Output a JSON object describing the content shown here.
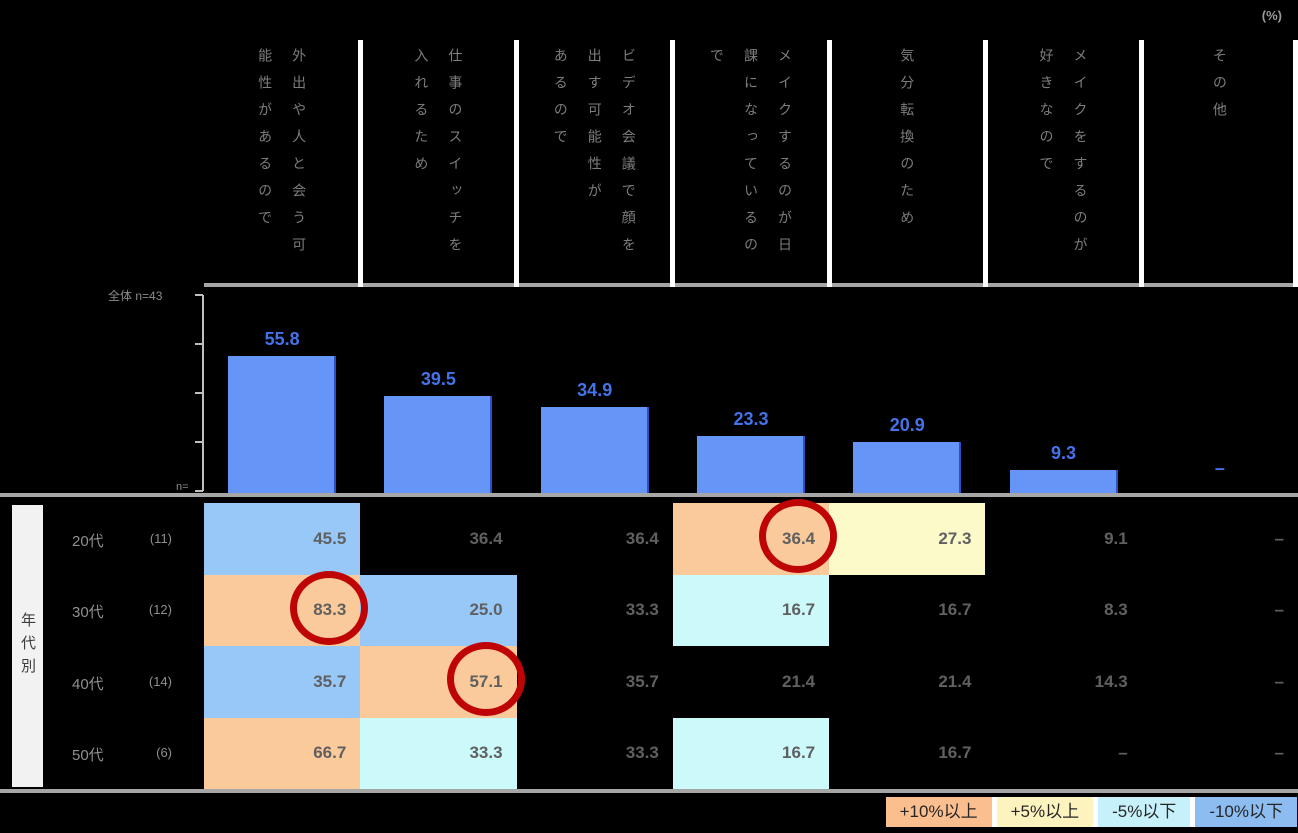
{
  "unit_label": "(%)",
  "chart": {
    "overall_label": "全体 n=43",
    "n_axis_label": "n=",
    "bar_color": "#6495F7",
    "bar_edge_color": "#2B50C8",
    "value_label_color": "#4472E8",
    "axis_max": 80,
    "no_data_mark": "–"
  },
  "columns": [
    {
      "header": "外出や人と会う可\n能性があるので",
      "overall": "55.8"
    },
    {
      "header": "仕事のスイッチを\n入れるため",
      "overall": "39.5"
    },
    {
      "header": "ビデオ会議で顔を\n出す可能性が\nあるので",
      "overall": "34.9"
    },
    {
      "header": "メイクするのが日\n課になっているの\nで",
      "overall": "23.3"
    },
    {
      "header": "気分転換のため",
      "overall": "20.9"
    },
    {
      "header": "メイクをするのが\n好きなので",
      "overall": "9.3"
    },
    {
      "header": "その他",
      "overall": "-"
    }
  ],
  "table": {
    "group_label": "年代別",
    "fill_colors": {
      "plus10": "#FACA9A",
      "plus5": "#FDFAC9",
      "minus5": "#CCFAFB",
      "minus10": "#97C8F8",
      "none": "transparent"
    },
    "rows": [
      {
        "label": "20代",
        "n": "(11)",
        "values": [
          "45.5",
          "36.4",
          "36.4",
          "36.4",
          "27.3",
          "9.1",
          "-"
        ],
        "fills": [
          "minus10",
          "none",
          "none",
          "plus10",
          "plus5",
          "none",
          "none"
        ]
      },
      {
        "label": "30代",
        "n": "(12)",
        "values": [
          "83.3",
          "25.0",
          "33.3",
          "16.7",
          "16.7",
          "8.3",
          "-"
        ],
        "fills": [
          "plus10",
          "minus10",
          "none",
          "minus5",
          "none",
          "none",
          "none"
        ]
      },
      {
        "label": "40代",
        "n": "(14)",
        "values": [
          "35.7",
          "57.1",
          "35.7",
          "21.4",
          "21.4",
          "14.3",
          "-"
        ],
        "fills": [
          "minus10",
          "plus10",
          "none",
          "none",
          "none",
          "none",
          "none"
        ]
      },
      {
        "label": "50代",
        "n": "(6)",
        "values": [
          "66.7",
          "33.3",
          "33.3",
          "16.7",
          "16.7",
          "-",
          "-"
        ],
        "fills": [
          "plus10",
          "minus5",
          "none",
          "minus5",
          "none",
          "none",
          "none"
        ]
      }
    ],
    "highlight_circles": [
      {
        "row": 0,
        "col": 3
      },
      {
        "row": 1,
        "col": 0
      },
      {
        "row": 2,
        "col": 1
      }
    ],
    "highlight_color": "#BE0404"
  },
  "legend": {
    "items": [
      {
        "label": "+10%以上",
        "color": "#FBBF8F"
      },
      {
        "label": "+5%以上",
        "color": "#FCF3BF"
      },
      {
        "label": "-5%以下",
        "color": "#C6F0FA"
      },
      {
        "label": "-10%以下",
        "color": "#8CBCF0"
      }
    ]
  },
  "chart_data": {
    "type": "bar",
    "title": "",
    "unit": "%",
    "overall_n": 43,
    "categories": [
      "外出や人と会う可能性があるので",
      "仕事のスイッチを入れるため",
      "ビデオ会議で顔を出す可能性があるので",
      "メイクするのが日課になっているので",
      "気分転換のため",
      "メイクをするのが好きなので",
      "その他"
    ],
    "values": [
      55.8,
      39.5,
      34.9,
      23.3,
      20.9,
      9.3,
      null
    ],
    "ylim": [
      0,
      80
    ],
    "grid": false,
    "legend_position": "bottom-right",
    "legend_entries": [
      "+10%以上",
      "+5%以上",
      "-5%以下",
      "-10%以下"
    ],
    "breakdown": {
      "group": "年代別",
      "rows": [
        {
          "label": "20代",
          "n": 11,
          "values": [
            45.5,
            36.4,
            36.4,
            36.4,
            27.3,
            9.1,
            null
          ]
        },
        {
          "label": "30代",
          "n": 12,
          "values": [
            83.3,
            25.0,
            33.3,
            16.7,
            16.7,
            8.3,
            null
          ]
        },
        {
          "label": "40代",
          "n": 14,
          "values": [
            35.7,
            57.1,
            35.7,
            21.4,
            21.4,
            14.3,
            null
          ]
        },
        {
          "label": "50代",
          "n": 6,
          "values": [
            66.7,
            33.3,
            33.3,
            16.7,
            16.7,
            null,
            null
          ]
        }
      ],
      "circled_values": [
        {
          "row": "20代",
          "category": "メイクするのが日課になっているので",
          "value": 36.4
        },
        {
          "row": "30代",
          "category": "外出や人と会う可能性があるので",
          "value": 83.3
        },
        {
          "row": "40代",
          "category": "仕事のスイッチを入れるため",
          "value": 57.1
        }
      ]
    }
  }
}
